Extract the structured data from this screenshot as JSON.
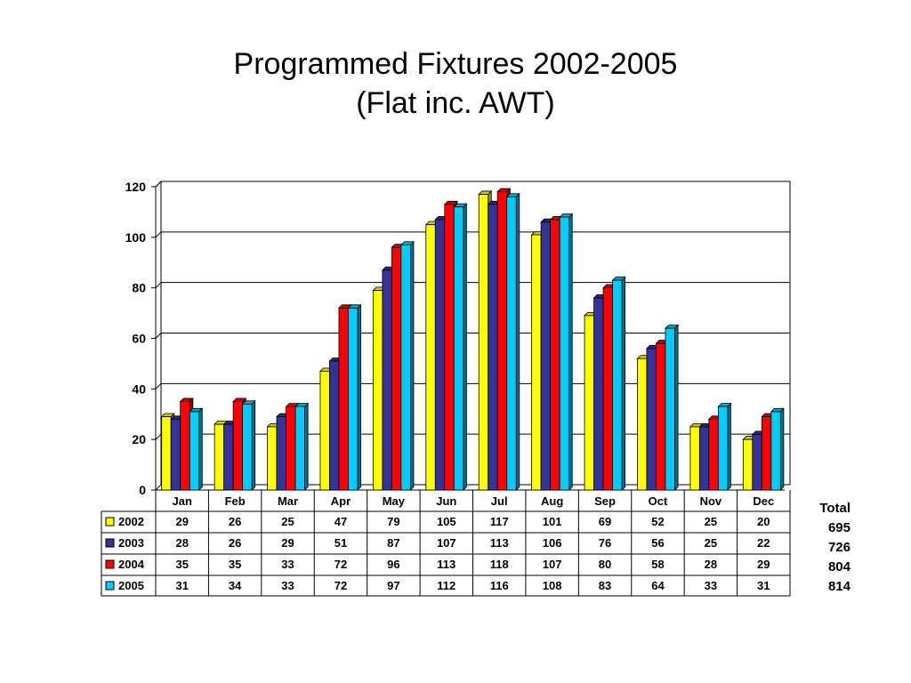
{
  "title_line1": "Programmed Fixtures 2002-2005",
  "title_line2": "(Flat inc. AWT)",
  "totals_label": "Total",
  "totals": [
    "695",
    "726",
    "804",
    "814"
  ],
  "chart_data": {
    "type": "bar",
    "categories": [
      "Jan",
      "Feb",
      "Mar",
      "Apr",
      "May",
      "Jun",
      "Jul",
      "Aug",
      "Sep",
      "Oct",
      "Nov",
      "Dec"
    ],
    "series": [
      {
        "name": "2002",
        "color": "#ffff00",
        "values": [
          29,
          26,
          25,
          47,
          79,
          105,
          117,
          101,
          69,
          52,
          25,
          20
        ]
      },
      {
        "name": "2003",
        "color": "#333399",
        "values": [
          28,
          26,
          29,
          51,
          87,
          107,
          113,
          106,
          76,
          56,
          25,
          22
        ]
      },
      {
        "name": "2004",
        "color": "#ff0000",
        "values": [
          35,
          35,
          33,
          72,
          96,
          113,
          118,
          107,
          80,
          58,
          28,
          29
        ]
      },
      {
        "name": "2005",
        "color": "#00ccff",
        "values": [
          31,
          34,
          33,
          72,
          97,
          112,
          116,
          108,
          83,
          64,
          33,
          31
        ]
      }
    ],
    "ylim": [
      0,
      120
    ],
    "yticks": [
      0,
      20,
      40,
      60,
      80,
      100,
      120
    ],
    "grid": true,
    "data_table": true
  }
}
